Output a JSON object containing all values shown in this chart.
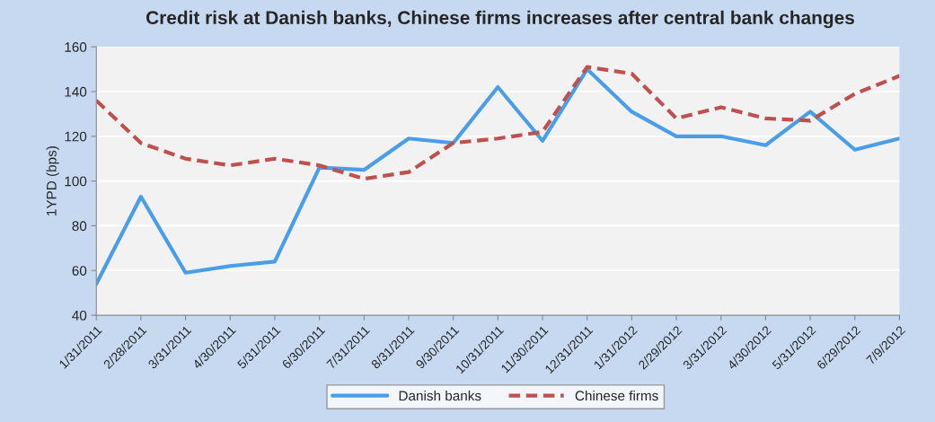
{
  "chart_data": {
    "type": "line",
    "title": "Credit risk at Danish banks, Chinese firms increases after central bank changes",
    "ylabel": "1YPD (bps)",
    "categories": [
      "1/31/2011",
      "2/28/2011",
      "3/31/2011",
      "4/30/2011",
      "5/31/2011",
      "6/30/2011",
      "7/31/2011",
      "8/31/2011",
      "9/30/2011",
      "10/31/2011",
      "11/30/2011",
      "12/31/2011",
      "1/31/2012",
      "2/29/2012",
      "3/31/2012",
      "4/30/2012",
      "5/31/2012",
      "6/29/2012",
      "7/9/2012"
    ],
    "series": [
      {
        "name": "Danish banks",
        "color": "#4a9ee8",
        "line_style": "solid",
        "values": [
          54,
          93,
          59,
          62,
          64,
          106,
          105,
          119,
          117,
          142,
          118,
          150,
          131,
          120,
          120,
          116,
          131,
          114,
          119
        ]
      },
      {
        "name": "Chinese firms",
        "color": "#c0504d",
        "line_style": "dashed",
        "values": [
          136,
          117,
          110,
          107,
          110,
          107,
          101,
          104,
          117,
          119,
          122,
          151,
          148,
          128,
          133,
          128,
          127,
          139,
          147
        ]
      }
    ],
    "ylim": [
      40,
      160
    ],
    "yticks": [
      40,
      60,
      80,
      100,
      120,
      140,
      160
    ],
    "grid": "y",
    "legend": "bottom",
    "marker": "none"
  }
}
